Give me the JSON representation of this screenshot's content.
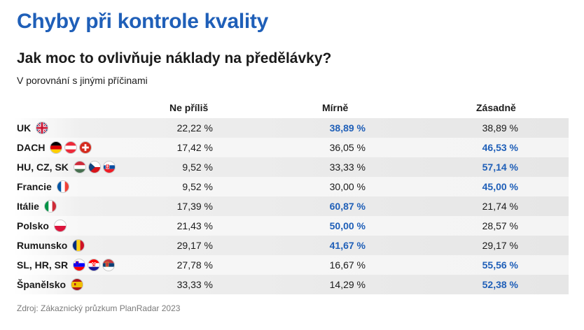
{
  "title": "Chyby při kontrole kvality",
  "subtitle": "Jak moc to ovlivňuje náklady na předělávky?",
  "caption": "V porovnání s jinými příčinami",
  "source": "Zdroj: Zákaznický průzkum PlanRadar 2023",
  "colors": {
    "title": "#1f5fb8",
    "highlight": "#1f5fb8"
  },
  "columns": [
    "Ne příliš",
    "Mírně",
    "Zásadně"
  ],
  "rows": [
    {
      "country": "UK",
      "flags": [
        "uk"
      ],
      "values": [
        "22,22 %",
        "38,89 %",
        "38,89 %"
      ],
      "highlight": 1
    },
    {
      "country": "DACH",
      "flags": [
        "de",
        "at",
        "ch"
      ],
      "values": [
        "17,42 %",
        "36,05 %",
        "46,53 %"
      ],
      "highlight": 2
    },
    {
      "country": "HU, CZ, SK",
      "flags": [
        "hu",
        "cz",
        "sk"
      ],
      "values": [
        "9,52 %",
        "33,33 %",
        "57,14 %"
      ],
      "highlight": 2
    },
    {
      "country": "Francie",
      "flags": [
        "fr"
      ],
      "values": [
        "9,52 %",
        "30,00 %",
        "45,00 %"
      ],
      "highlight": 2
    },
    {
      "country": "Itálie",
      "flags": [
        "it"
      ],
      "values": [
        "17,39 %",
        "60,87 %",
        "21,74 %"
      ],
      "highlight": 1
    },
    {
      "country": "Polsko",
      "flags": [
        "pl"
      ],
      "values": [
        "21,43 %",
        "50,00 %",
        "28,57 %"
      ],
      "highlight": 1
    },
    {
      "country": "Rumunsko",
      "flags": [
        "ro"
      ],
      "values": [
        "29,17 %",
        "41,67 %",
        "29,17 %"
      ],
      "highlight": 1
    },
    {
      "country": "SL, HR, SR",
      "flags": [
        "si",
        "hr",
        "rs"
      ],
      "values": [
        "27,78 %",
        "16,67 %",
        "55,56 %"
      ],
      "highlight": 2
    },
    {
      "country": "Španělsko",
      "flags": [
        "es"
      ],
      "values": [
        "33,33 %",
        "14,29 %",
        "52,38 %"
      ],
      "highlight": 2
    }
  ],
  "chart_data": {
    "type": "table",
    "title": "Chyby při kontrole kvality",
    "subtitle": "Jak moc to ovlivňuje náklady na předělávky?",
    "columns": [
      "Ne příliš",
      "Mírně",
      "Zásadně"
    ],
    "categories": [
      "UK",
      "DACH",
      "HU, CZ, SK",
      "Francie",
      "Itálie",
      "Polsko",
      "Rumunsko",
      "SL, HR, SR",
      "Španělsko"
    ],
    "series": [
      {
        "name": "Ne příliš",
        "values": [
          22.22,
          17.42,
          9.52,
          9.52,
          17.39,
          21.43,
          29.17,
          27.78,
          33.33
        ]
      },
      {
        "name": "Mírně",
        "values": [
          38.89,
          36.05,
          33.33,
          30.0,
          60.87,
          50.0,
          41.67,
          16.67,
          14.29
        ]
      },
      {
        "name": "Zásadně",
        "values": [
          38.89,
          46.53,
          57.14,
          45.0,
          21.74,
          28.57,
          29.17,
          55.56,
          52.38
        ]
      }
    ]
  }
}
